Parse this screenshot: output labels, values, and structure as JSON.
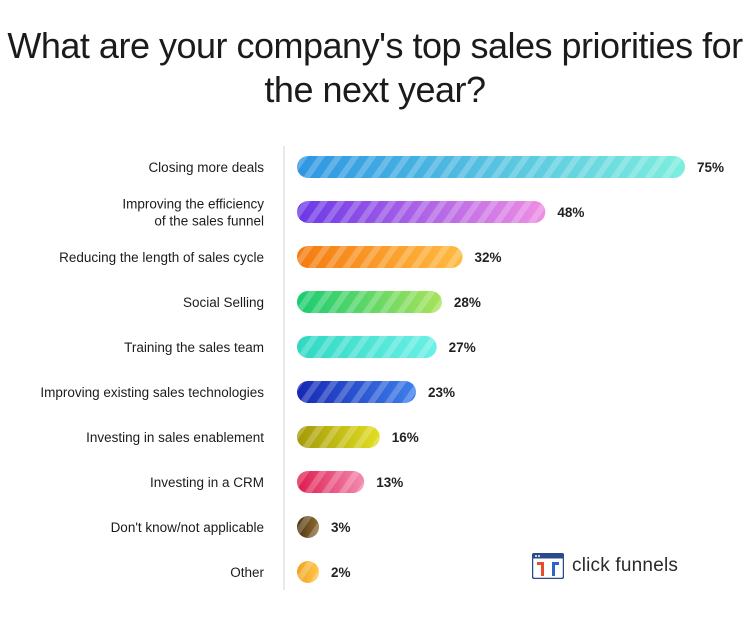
{
  "chart_data": {
    "type": "bar",
    "orientation": "horizontal",
    "title": "What are your company's top sales priorities for the next year?",
    "categories": [
      "Closing more deals",
      "Improving the efficiency of the sales funnel",
      "Reducing the length of sales cycle",
      "Social Selling",
      "Training the sales team",
      "Improving existing sales technologies",
      "Investing in sales enablement",
      "Investing in a CRM",
      "Don't know/not applicable",
      "Other"
    ],
    "category_lines": [
      [
        "Closing more deals"
      ],
      [
        "Improving the efficiency",
        "of the sales funnel"
      ],
      [
        "Reducing the length of sales cycle"
      ],
      [
        "Social Selling"
      ],
      [
        "Training the sales team"
      ],
      [
        "Improving existing sales technologies"
      ],
      [
        "Investing in sales enablement"
      ],
      [
        "Investing in a CRM"
      ],
      [
        "Don't know/not applicable"
      ],
      [
        "Other"
      ]
    ],
    "values": [
      75,
      48,
      32,
      28,
      27,
      23,
      16,
      13,
      3,
      2
    ],
    "value_labels": [
      "75%",
      "48%",
      "32%",
      "28%",
      "27%",
      "23%",
      "16%",
      "13%",
      "3%",
      "2%"
    ],
    "unit": "%",
    "xlim": [
      0,
      75
    ],
    "grid": false,
    "legend": "none",
    "bar_gradients": [
      [
        "#2f95e3",
        "#7deede"
      ],
      [
        "#6a38e8",
        "#ef8ee4"
      ],
      [
        "#f47b10",
        "#ffbb42"
      ],
      [
        "#19cc73",
        "#a9e25a"
      ],
      [
        "#2fd8c2",
        "#6cf0e6"
      ],
      [
        "#1628b4",
        "#3d80ea"
      ],
      [
        "#a39a08",
        "#e2de22"
      ],
      [
        "#de1b4e",
        "#f38bb1"
      ],
      [
        "#4f3410",
        "#8e6d36"
      ],
      [
        "#f1a320",
        "#ffc64d"
      ]
    ]
  },
  "brand": {
    "name": "click funnels",
    "icon": "clickfunnels-logo-icon"
  }
}
